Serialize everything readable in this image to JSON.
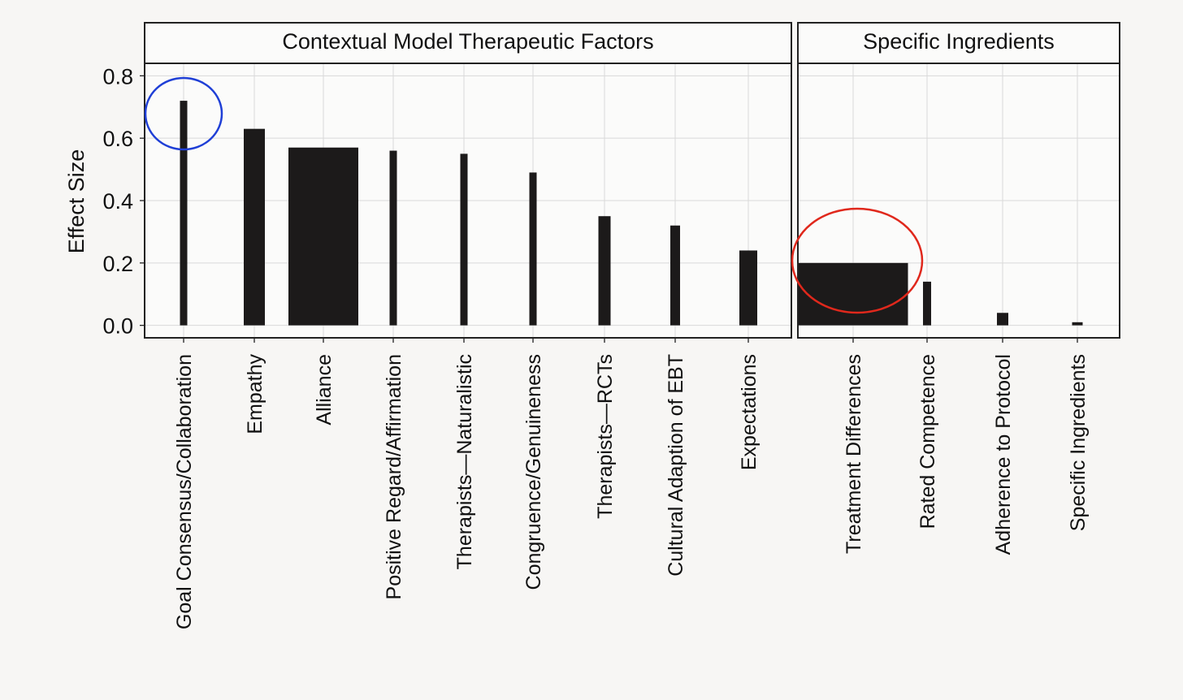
{
  "chart_data": {
    "type": "bar",
    "ylabel": "Effect Size",
    "ylim": [
      -0.04,
      0.84
    ],
    "yticks": [
      "0.0",
      "0.2",
      "0.4",
      "0.6",
      "0.8"
    ],
    "grid": true,
    "bar_color": "#1c1a1a",
    "panels": [
      {
        "title": "Contextual Model Therapeutic Factors",
        "bars": [
          {
            "label": "Goal Consensus/Collaboration",
            "value": 0.72
          },
          {
            "label": "Empathy",
            "value": 0.63
          },
          {
            "label": "Alliance",
            "value": 0.57
          },
          {
            "label": "Positive Regard/Affirmation",
            "value": 0.56
          },
          {
            "label": "Therapists—Naturalistic",
            "value": 0.55
          },
          {
            "label": "Congruence/Genuineness",
            "value": 0.49
          },
          {
            "label": "Therapists—RCTs",
            "value": 0.35
          },
          {
            "label": "Cultural Adaption of EBT",
            "value": 0.32
          },
          {
            "label": "Expectations",
            "value": 0.24
          }
        ]
      },
      {
        "title": "Specific Ingredients",
        "bars": [
          {
            "label": "Treatment Differences",
            "value": 0.2
          },
          {
            "label": "Rated Competence",
            "value": 0.14
          },
          {
            "label": "Adherence to Protocol",
            "value": 0.04
          },
          {
            "label": "Specific Ingredients",
            "value": 0.01
          }
        ]
      }
    ],
    "highlights": [
      {
        "target": "Goal Consensus/Collaboration",
        "color": "#1f3fd6"
      },
      {
        "target": "Treatment Differences",
        "color": "#e0281c"
      }
    ]
  }
}
